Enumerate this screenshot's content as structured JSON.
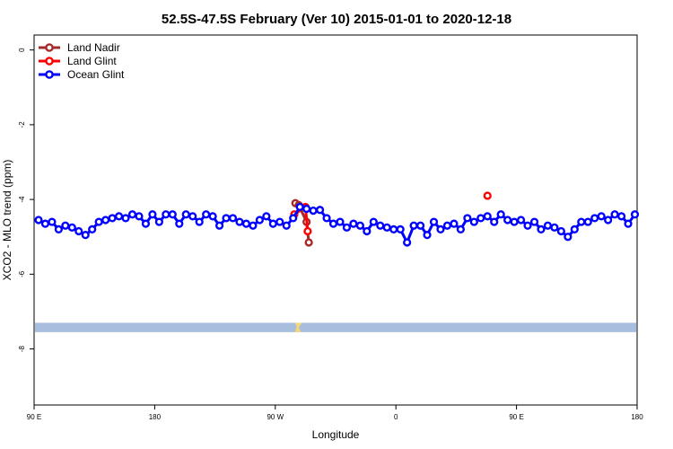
{
  "chart_data": {
    "type": "line",
    "title": "52.5S-47.5S February (Ver 10)   2015-01-01 to 2020-12-18",
    "xlabel": "Longitude",
    "ylabel": "XCO2 - MLO trend (ppm)",
    "xlim": [
      -90,
      180
    ],
    "ylim": [
      -9.5,
      0.4
    ],
    "x_ticks": [
      {
        "value": -90,
        "label": "90 E"
      },
      {
        "value": -36,
        "label": "180"
      },
      {
        "value": 18,
        "label": "90 W"
      },
      {
        "value": 72,
        "label": "0"
      },
      {
        "value": 126,
        "label": "90 E"
      },
      {
        "value": 180,
        "label": "180"
      }
    ],
    "y_ticks": [
      {
        "value": 0,
        "label": "0"
      },
      {
        "value": -2,
        "label": "-2"
      },
      {
        "value": -4,
        "label": "-4"
      },
      {
        "value": -6,
        "label": "-6"
      },
      {
        "value": -8,
        "label": "-8"
      }
    ],
    "legend_position": "top-left",
    "series": [
      {
        "name": "Land Nadir",
        "color": "#a52a2a",
        "x": [
          27,
          28.5,
          32,
          33
        ],
        "y": [
          -4.1,
          -4.15,
          -4.6,
          -5.15
        ]
      },
      {
        "name": "Land Glint",
        "color": "#ff0000",
        "x": [
          26.5,
          31.5,
          32.5,
          113
        ],
        "y": [
          -4.4,
          -4.2,
          -4.85,
          -3.9
        ]
      },
      {
        "name": "Ocean Glint",
        "color": "#0000ff",
        "x": [
          -88,
          -85,
          -82,
          -79,
          -76,
          -73,
          -70,
          -67,
          -64,
          -61,
          -58,
          -55,
          -52,
          -49,
          -46,
          -43,
          -40,
          -37,
          -34,
          -31,
          -28,
          -25,
          -22,
          -19,
          -16,
          -13,
          -10,
          -7,
          -4,
          -1,
          2,
          5,
          8,
          11,
          14,
          17,
          20,
          23,
          26,
          29,
          32,
          35,
          38,
          41,
          44,
          47,
          50,
          53,
          56,
          59,
          62,
          65,
          68,
          71,
          74,
          77,
          80,
          83,
          86,
          89,
          92,
          95,
          98,
          101,
          104,
          107,
          110,
          113,
          116,
          119,
          122,
          125,
          128,
          131,
          134,
          137,
          140,
          143,
          146,
          149,
          152,
          155,
          158,
          161,
          164,
          167,
          170,
          173,
          176,
          179
        ],
        "y": [
          -4.55,
          -4.65,
          -4.6,
          -4.8,
          -4.7,
          -4.75,
          -4.85,
          -4.95,
          -4.8,
          -4.6,
          -4.55,
          -4.5,
          -4.45,
          -4.5,
          -4.4,
          -4.45,
          -4.65,
          -4.4,
          -4.6,
          -4.4,
          -4.4,
          -4.65,
          -4.4,
          -4.45,
          -4.6,
          -4.4,
          -4.45,
          -4.7,
          -4.5,
          -4.5,
          -4.6,
          -4.65,
          -4.7,
          -4.55,
          -4.45,
          -4.65,
          -4.6,
          -4.7,
          -4.5,
          -4.2,
          -4.25,
          -4.3,
          -4.28,
          -4.5,
          -4.65,
          -4.6,
          -4.75,
          -4.65,
          -4.7,
          -4.85,
          -4.6,
          -4.7,
          -4.75,
          -4.8,
          -4.8,
          -5.15,
          -4.7,
          -4.7,
          -4.95,
          -4.6,
          -4.8,
          -4.7,
          -4.65,
          -4.8,
          -4.5,
          -4.6,
          -4.5,
          -4.45,
          -4.6,
          -4.4,
          -4.55,
          -4.6,
          -4.55,
          -4.7,
          -4.6,
          -4.8,
          -4.7,
          -4.75,
          -4.85,
          -5.0,
          -4.8,
          -4.6,
          -4.6,
          -4.5,
          -4.45,
          -4.55,
          -4.4,
          -4.45,
          -4.65,
          -4.4
        ]
      }
    ],
    "map_strip": {
      "y_top": -7.3,
      "y_bottom": -7.55,
      "ocean_color": "#a8bede",
      "land_color": "#f5d77a"
    }
  }
}
